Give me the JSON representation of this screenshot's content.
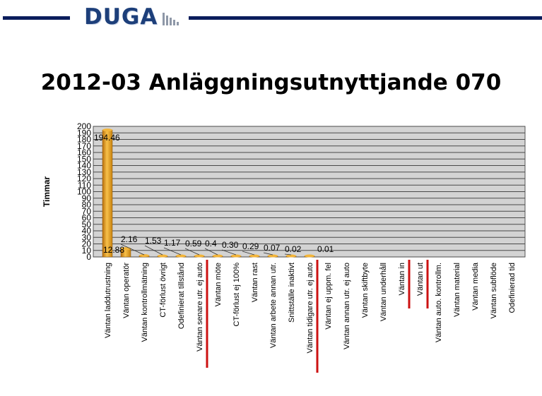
{
  "logo": {
    "text": "DUGA"
  },
  "page": {
    "title": "2012-03 Anläggningsutnyttjande 070"
  },
  "colors": {
    "header_line": "#0b1d5c",
    "plot_bg": "#d3d3d3",
    "bar": "#e09a1c",
    "marker": "#cc1111"
  },
  "chart_data": {
    "type": "bar",
    "title": "2012-03 Anläggningsutnyttjande 070",
    "xlabel": "",
    "ylabel": "Timmar",
    "ylim": [
      0,
      200
    ],
    "yticks": [
      0,
      10,
      20,
      30,
      40,
      50,
      60,
      70,
      80,
      90,
      100,
      110,
      120,
      130,
      140,
      150,
      160,
      170,
      180,
      190,
      200
    ],
    "grid": true,
    "categories": [
      "Väntan laddutrustning",
      "Väntan operatör",
      "Väntan kontrollmätning",
      "CT-förlust övrigt",
      "Odefinierat tillstånd",
      "Väntan senare utr. ej auto",
      "Väntan möte",
      "CT-förlust ej 100%",
      "Väntan rast",
      "Väntan arbete annan utr.",
      "Snittställe inaktivt",
      "Väntan tidigare utr. ej auto",
      "Väntan ej uppm. fel",
      "Väntan annan utr. ej auto",
      "Väntan skiftbyte",
      "Väntan underhåll",
      "Väntan in",
      "Väntan ut",
      "Väntan auto. kontrollm.",
      "Väntan material",
      "Väntan media",
      "Väntan subflöde",
      "Odefinierad tid"
    ],
    "values": [
      194.46,
      12.88,
      2.16,
      1.53,
      1.17,
      0.59,
      0.4,
      0.3,
      0.29,
      0.07,
      0.02,
      0.01,
      0,
      0,
      0,
      0,
      0,
      0,
      0,
      0,
      0,
      0,
      0
    ],
    "value_labels": [
      "194.46",
      "12.88",
      "2.16",
      "1.53",
      "1.17",
      "0.59",
      "0.4",
      "0.30",
      "0.29",
      "0.07",
      "0.02",
      "0.01",
      "",
      "",
      "",
      "",
      "",
      "",
      "",
      "",
      "",
      "",
      ""
    ],
    "markers_after": [
      5,
      11,
      16,
      17
    ]
  }
}
